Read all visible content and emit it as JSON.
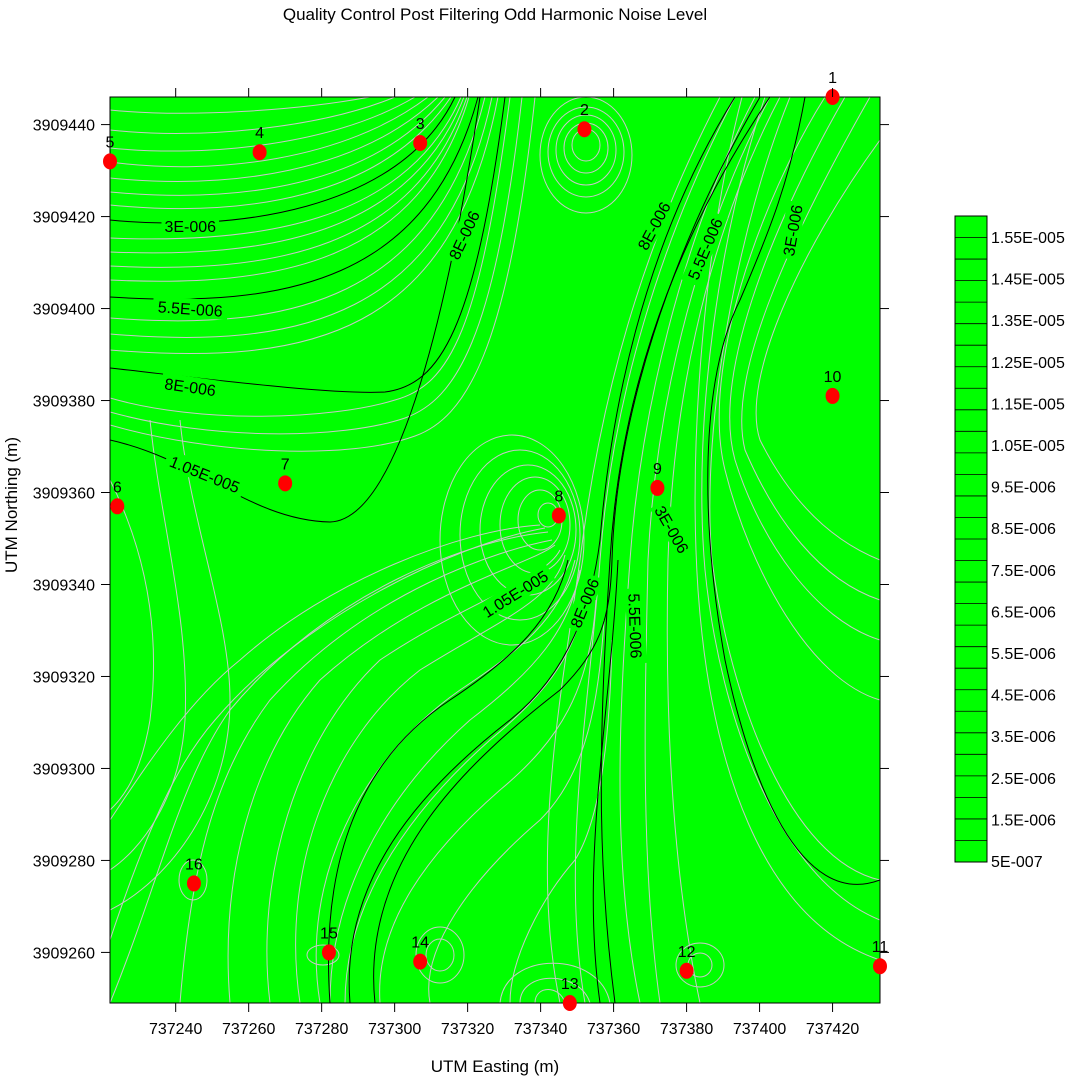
{
  "chart_data": {
    "type": "contour",
    "title": "Quality Control Post Filtering Odd Harmonic Noise Level",
    "xlabel": "UTM Easting (m)",
    "ylabel": "UTM Northing (m)",
    "xlim": [
      737222,
      737433
    ],
    "ylim": [
      3909249,
      3909446
    ],
    "x_ticks": [
      737240,
      737260,
      737280,
      737300,
      737320,
      737340,
      737360,
      737380,
      737400,
      737420
    ],
    "y_ticks": [
      3909260,
      3909280,
      3909300,
      3909320,
      3909340,
      3909360,
      3909380,
      3909400,
      3909420,
      3909440
    ],
    "fill_color": "#00ff00",
    "minor_contour_color": "#c8c8c8",
    "major_contour_color": "#000000",
    "station_color": "#ff0000",
    "stations": [
      {
        "label": "1",
        "x": 737420,
        "y": 3909446
      },
      {
        "label": "2",
        "x": 737352,
        "y": 3909439
      },
      {
        "label": "3",
        "x": 737307,
        "y": 3909436
      },
      {
        "label": "4",
        "x": 737263,
        "y": 3909434
      },
      {
        "label": "5",
        "x": 737222,
        "y": 3909432
      },
      {
        "label": "6",
        "x": 737224,
        "y": 3909357
      },
      {
        "label": "7",
        "x": 737270,
        "y": 3909362
      },
      {
        "label": "8",
        "x": 737345,
        "y": 3909355
      },
      {
        "label": "9",
        "x": 737372,
        "y": 3909361
      },
      {
        "label": "10",
        "x": 737420,
        "y": 3909381
      },
      {
        "label": "11",
        "x": 737433,
        "y": 3909257
      },
      {
        "label": "12",
        "x": 737380,
        "y": 3909256
      },
      {
        "label": "13",
        "x": 737348,
        "y": 3909249
      },
      {
        "label": "14",
        "x": 737307,
        "y": 3909258
      },
      {
        "label": "15",
        "x": 737282,
        "y": 3909260
      },
      {
        "label": "16",
        "x": 737245,
        "y": 3909275
      }
    ],
    "contour_labels": [
      {
        "text": "3E-006",
        "x": 737244,
        "y": 3909418,
        "angle": 0
      },
      {
        "text": "5.5E-006",
        "x": 737244,
        "y": 3909400,
        "angle": 4
      },
      {
        "text": "8E-006",
        "x": 737244,
        "y": 3909383,
        "angle": 8
      },
      {
        "text": "1.05E-005",
        "x": 737248,
        "y": 3909364,
        "angle": 22
      },
      {
        "text": "8E-006",
        "x": 737319,
        "y": 3909416,
        "angle": -65
      },
      {
        "text": "8E-006",
        "x": 737371,
        "y": 3909418,
        "angle": -62
      },
      {
        "text": "5.5E-006",
        "x": 737385,
        "y": 3909413,
        "angle": -67
      },
      {
        "text": "3E-006",
        "x": 737409,
        "y": 3909417,
        "angle": -80
      },
      {
        "text": "1.05E-005",
        "x": 737333,
        "y": 3909338,
        "angle": -32
      },
      {
        "text": "8E-006",
        "x": 737352,
        "y": 3909336,
        "angle": -68
      },
      {
        "text": "5.5E-006",
        "x": 737366,
        "y": 3909331,
        "angle": 88
      },
      {
        "text": "3E-006",
        "x": 737376,
        "y": 3909352,
        "angle": 60
      }
    ],
    "legend": {
      "entries": [
        "1.55E-005",
        "1.45E-005",
        "1.35E-005",
        "1.25E-005",
        "1.15E-005",
        "1.05E-005",
        "9.5E-006",
        "8.5E-006",
        "7.5E-006",
        "6.5E-006",
        "5.5E-006",
        "4.5E-006",
        "3.5E-006",
        "2.5E-006",
        "1.5E-006",
        "5E-007"
      ],
      "levels": 30
    },
    "grid": false
  }
}
